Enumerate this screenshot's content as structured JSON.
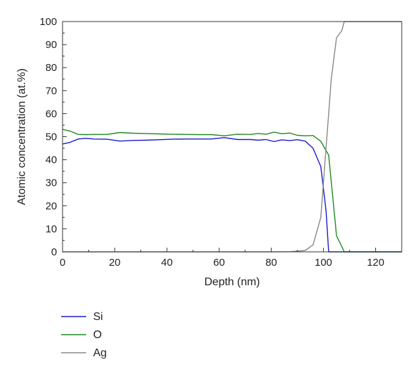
{
  "chart_data": {
    "type": "line",
    "xlabel": "Depth (nm)",
    "ylabel": "Atomic concentration (at.%)",
    "xlim": [
      0,
      130
    ],
    "ylim": [
      0,
      100
    ],
    "x_ticks": [
      "0",
      "20",
      "40",
      "60",
      "80",
      "100",
      "120"
    ],
    "y_ticks": [
      "0",
      "10",
      "20",
      "30",
      "40",
      "50",
      "60",
      "70",
      "80",
      "90",
      "100"
    ],
    "grid": false,
    "legend_position": "bottom-left",
    "series": [
      {
        "name": "Si",
        "color": "#1a1acc",
        "x": [
          0,
          3,
          6,
          9,
          12,
          17,
          22,
          27,
          32,
          37,
          42,
          47,
          52,
          57,
          62,
          67,
          72,
          75,
          78,
          81,
          84,
          87,
          90,
          93,
          96,
          99,
          101,
          102,
          104,
          108,
          130
        ],
        "y": [
          46.8,
          47.6,
          49,
          49.3,
          49,
          48.9,
          48.1,
          48.4,
          48.5,
          48.7,
          48.9,
          49,
          49,
          49,
          49.6,
          48.8,
          48.8,
          48.5,
          48.8,
          47.9,
          48.6,
          48.3,
          48.7,
          48.1,
          45,
          37,
          18,
          0,
          0,
          0,
          0
        ]
      },
      {
        "name": "O",
        "color": "#1f8a1f",
        "x": [
          0,
          3,
          6,
          9,
          12,
          17,
          22,
          27,
          32,
          37,
          42,
          47,
          52,
          57,
          62,
          67,
          72,
          75,
          78,
          81,
          84,
          87,
          90,
          93,
          96,
          99,
          102,
          105,
          108,
          110,
          130
        ],
        "y": [
          53.2,
          52.4,
          51,
          50.9,
          51,
          51,
          51.8,
          51.5,
          51.4,
          51.2,
          51.1,
          51,
          50.9,
          50.9,
          50.4,
          51.1,
          51,
          51.4,
          51.1,
          52,
          51.3,
          51.6,
          50.6,
          50.4,
          50.5,
          48,
          42,
          7,
          0,
          0,
          0
        ]
      },
      {
        "name": "Ag",
        "color": "#888888",
        "x": [
          0,
          20,
          40,
          60,
          80,
          87,
          90,
          93,
          96,
          99,
          101,
          102,
          103,
          105,
          107,
          108,
          130
        ],
        "y": [
          0,
          0,
          0,
          0,
          0,
          0.1,
          0.3,
          0.6,
          3,
          15,
          45,
          60,
          75,
          93,
          96,
          100,
          100
        ]
      }
    ]
  }
}
